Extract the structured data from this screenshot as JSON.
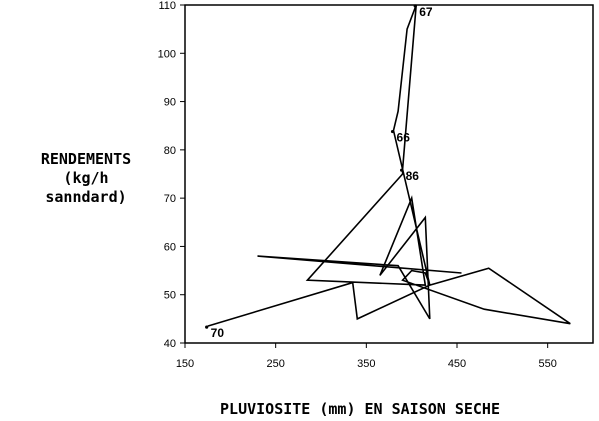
{
  "chart_data": {
    "type": "line",
    "ylabel_lines": [
      "RENDEMENTS",
      "(kg/h",
      "sanndard)"
    ],
    "xlabel": "PLUVIOSITE (mm) EN SAISON SECHE",
    "xlim": [
      150,
      600
    ],
    "ylim": [
      40,
      110
    ],
    "x_ticks": [
      150,
      250,
      350,
      450,
      550
    ],
    "y_ticks": [
      40,
      50,
      60,
      70,
      80,
      90,
      100,
      110
    ],
    "grid": false,
    "series": [
      {
        "x": [
          455,
          230,
          385,
          420,
          415,
          365,
          400,
          415,
          285,
          390,
          390,
          405,
          395,
          385,
          380,
          420,
          485,
          575,
          480,
          390,
          400,
          415,
          420,
          340,
          335,
          175
        ],
        "y": [
          54.5,
          58,
          56,
          45,
          66,
          54,
          70,
          52,
          53,
          75,
          76,
          110,
          105,
          88,
          84,
          52,
          55.5,
          44,
          47,
          53,
          55,
          54.5,
          52,
          45,
          52.5,
          43.5
        ]
      }
    ],
    "annotations": [
      {
        "label": "67",
        "x": 405,
        "y": 110
      },
      {
        "label": "66",
        "x": 380,
        "y": 84
      },
      {
        "label": "86",
        "x": 390,
        "y": 76
      },
      {
        "label": "70",
        "x": 175,
        "y": 43.5
      }
    ],
    "color": "#000000"
  }
}
